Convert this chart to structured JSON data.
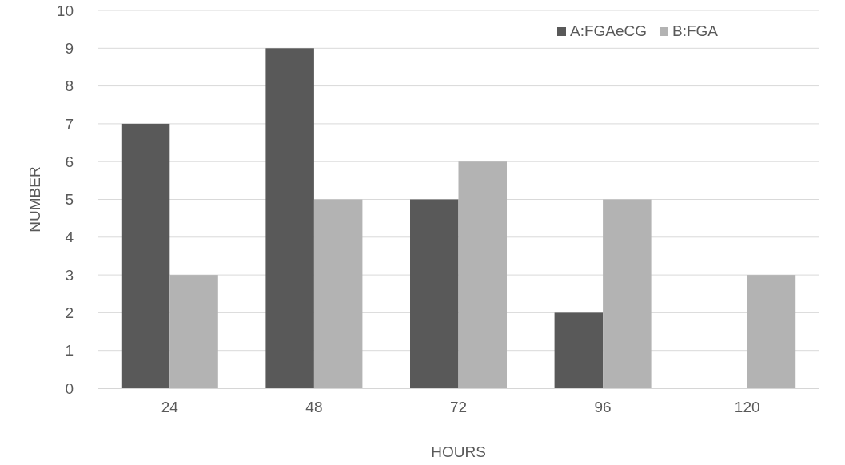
{
  "chart_data": {
    "type": "bar",
    "xlabel": "HOURS",
    "ylabel": "NUMBER",
    "categories": [
      "24",
      "48",
      "72",
      "96",
      "120"
    ],
    "series": [
      {
        "name": "A:FGAeCG",
        "color": "#595959",
        "values": [
          7,
          9,
          5,
          2,
          0
        ]
      },
      {
        "name": "B:FGA",
        "color": "#b3b3b3",
        "values": [
          3,
          5,
          6,
          5,
          3
        ]
      }
    ],
    "ylim": [
      0,
      10
    ],
    "yticks": [
      0,
      1,
      2,
      3,
      4,
      5,
      6,
      7,
      8,
      9,
      10
    ],
    "grid": "y",
    "legend": "top right"
  }
}
